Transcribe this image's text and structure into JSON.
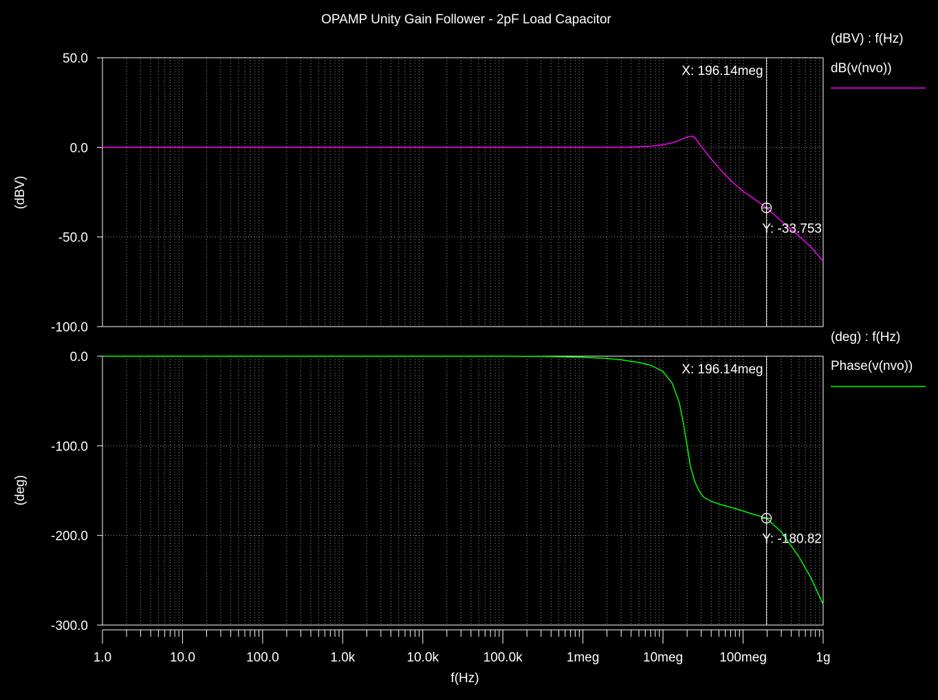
{
  "chart_data": [
    {
      "type": "line",
      "title": "OPAMP Unity Gain Follower - 2pF Load Capacitor",
      "xlabel": "f(Hz)",
      "ylabel": "(dBV)",
      "x_scale": "log",
      "xlim": [
        1,
        1000000000
      ],
      "ylim": [
        -100,
        50
      ],
      "y_ticks": [
        50,
        0,
        -50,
        -100
      ],
      "y_tick_labels": [
        "50.0",
        "0.0",
        "-50.0",
        "-100.0"
      ],
      "grid": true,
      "legend": {
        "placement": "right",
        "header": "(dBV) : f(Hz)",
        "entry": "dB(v(nvo))"
      },
      "series": [
        {
          "name": "dB(v(nvo))",
          "color": "#ff00ff",
          "x": [
            1,
            10,
            100,
            1000,
            10000,
            100000,
            1000000,
            3000000,
            5000000,
            8000000,
            10000000,
            13000000,
            16000000,
            20000000,
            23000000,
            25000000,
            30000000,
            40000000,
            50000000,
            70000000,
            100000000,
            140000000,
            196140000,
            300000000,
            500000000,
            700000000,
            1000000000
          ],
          "y": [
            0,
            0,
            0,
            0,
            0,
            0,
            0,
            0.1,
            0.3,
            0.9,
            1.5,
            2.5,
            4.0,
            5.8,
            6.3,
            5.5,
            0.5,
            -6.5,
            -11.5,
            -18.5,
            -24.5,
            -29.0,
            -33.753,
            -41.0,
            -49.5,
            -55.5,
            -63.5
          ]
        }
      ],
      "cursor": {
        "label": "X: 196.14meg",
        "value_label": "Y: -33.753",
        "x": 196140000,
        "y": -33.753
      }
    },
    {
      "type": "line",
      "xlabel": "f(Hz)",
      "ylabel": "(deg)",
      "x_scale": "log",
      "xlim": [
        1,
        1000000000
      ],
      "x_tick_labels": [
        "1.0",
        "10.0",
        "100.0",
        "1.0k",
        "10.0k",
        "100.0k",
        "1meg",
        "10meg",
        "100meg",
        "1g"
      ],
      "ylim": [
        -300,
        0
      ],
      "y_ticks": [
        0,
        -100,
        -200,
        -300
      ],
      "y_tick_labels": [
        "0.0",
        "-100.0",
        "-200.0",
        "-300.0"
      ],
      "grid": true,
      "legend": {
        "placement": "right",
        "header": "(deg) : f(Hz)",
        "entry": "Phase(v(nvo))"
      },
      "series": [
        {
          "name": "Phase(v(nvo))",
          "color": "#00ff00",
          "x": [
            1,
            10,
            100,
            1000,
            10000,
            100000,
            300000,
            1000000,
            2000000,
            3000000,
            5000000,
            7000000,
            10000000,
            13000000,
            16000000,
            18000000,
            20000000,
            22000000,
            25000000,
            28000000,
            32000000,
            40000000,
            55000000,
            80000000,
            120000000,
            196140000,
            300000000,
            500000000,
            700000000,
            1000000000
          ],
          "y": [
            0,
            0,
            0,
            0,
            0,
            0,
            -0.3,
            -1.2,
            -2.5,
            -4,
            -7,
            -10,
            -17,
            -30,
            -52,
            -75,
            -100,
            -123,
            -140,
            -150,
            -157,
            -162,
            -166,
            -170,
            -175,
            -180.82,
            -196,
            -224,
            -247,
            -277
          ]
        }
      ],
      "cursor": {
        "label": "X: 196.14meg",
        "value_label": "Y: -180.82",
        "x": 196140000,
        "y": -180.82
      }
    }
  ]
}
